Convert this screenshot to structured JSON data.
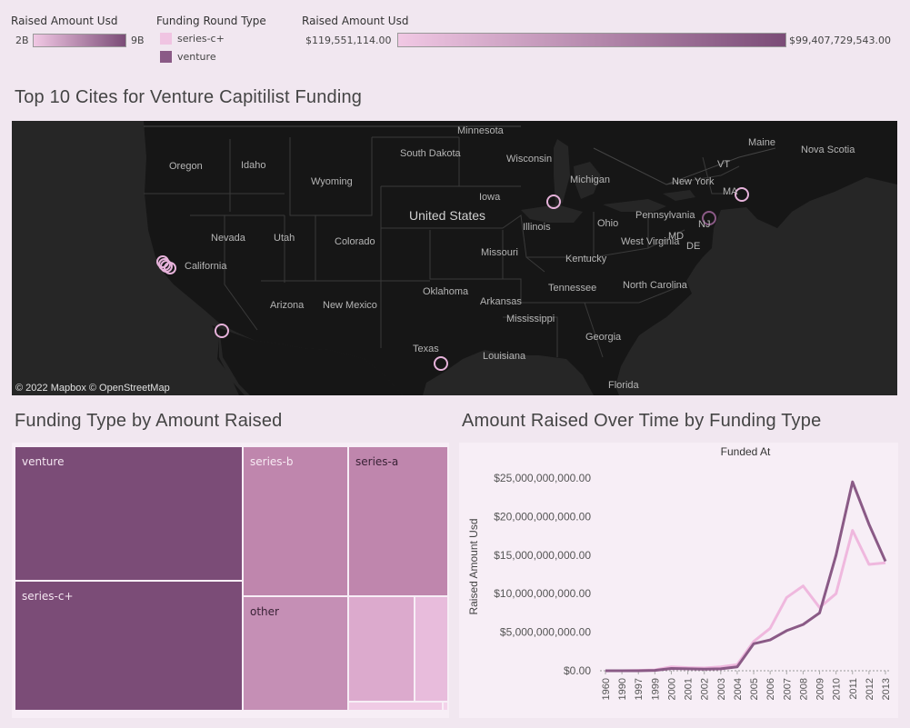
{
  "legends": {
    "size": {
      "title": "Raised Amount Usd",
      "min": "2B",
      "max": "9B"
    },
    "round_type": {
      "title": "Funding Round Type",
      "items": [
        {
          "label": "series-c+",
          "color": "#f0c4e2"
        },
        {
          "label": "venture",
          "color": "#8a5a86"
        }
      ]
    },
    "color": {
      "title": "Raised Amount Usd",
      "min": "$119,551,114.00",
      "max": "$99,407,729,543.00"
    }
  },
  "map": {
    "title": "Top 10 Cites for Venture Capitilist Funding",
    "attribution": "© 2022 Mapbox © OpenStreetMap",
    "labels": [
      "Minnesota",
      "Maine",
      "Nova Scotia",
      "South Dakota",
      "Wisconsin",
      "Oregon",
      "Idaho",
      "Wyoming",
      "Michigan",
      "VT",
      "New York",
      "MA",
      "Iowa",
      "United States",
      "Pennsylvania",
      "Nevada",
      "Utah",
      "Colorado",
      "Illinois",
      "Ohio",
      "MD",
      "DE",
      "NJ",
      "West Virginia",
      "Missouri",
      "Kentucky",
      "California",
      "Oklahoma",
      "Tennessee",
      "North Carolina",
      "Arizona",
      "New Mexico",
      "Arkansas",
      "Mississippi",
      "Georgia",
      "Texas",
      "Louisiana",
      "Florida"
    ]
  },
  "treemap": {
    "title": "Funding Type by Amount Raised",
    "cells": [
      {
        "label": "venture",
        "color": "#7b4c77"
      },
      {
        "label": "series-c+",
        "color": "#7b4c77"
      },
      {
        "label": "series-b",
        "color": "#bf86ad"
      },
      {
        "label": "series-a",
        "color": "#bf86ad"
      },
      {
        "label": "other",
        "color": "#c58fb5"
      },
      {
        "label": "",
        "color": "#dcaacd"
      },
      {
        "label": "",
        "color": "#e8bcdc"
      },
      {
        "label": "",
        "color": "#f0cbe5"
      },
      {
        "label": "",
        "color": "#f3d3ea"
      }
    ]
  },
  "chart_data": {
    "type": "line",
    "title": "Amount Raised Over Time by Funding Type",
    "subtitle": "Funded At",
    "ylabel": "Raised Amount Usd",
    "categories": [
      "1960",
      "1990",
      "1997",
      "1999",
      "2000",
      "2001",
      "2002",
      "2003",
      "2004",
      "2005",
      "2006",
      "2007",
      "2008",
      "2009",
      "2010",
      "2011",
      "2012",
      "2013"
    ],
    "yticks": [
      "$0.00",
      "$5,000,000,000.00",
      "$10,000,000,000.00",
      "$15,000,000,000.00",
      "$20,000,000,000.00",
      "$25,000,000,000.00"
    ],
    "ylim": [
      0,
      27000000000
    ],
    "series": [
      {
        "name": "venture",
        "color": "#8a5a86",
        "values": [
          0,
          0,
          0,
          50000000,
          300000000,
          250000000,
          200000000,
          250000000,
          500000000,
          3500000000,
          4000000000,
          5200000000,
          6000000000,
          7500000000,
          15000000000,
          24500000000,
          19000000000,
          14200000000
        ]
      },
      {
        "name": "series-c+",
        "color": "#efb8de",
        "values": [
          0,
          0,
          50000000,
          100000000,
          500000000,
          400000000,
          350000000,
          500000000,
          800000000,
          3800000000,
          5500000000,
          9500000000,
          11000000000,
          8200000000,
          10000000000,
          18200000000,
          13800000000,
          14000000000
        ]
      }
    ]
  }
}
